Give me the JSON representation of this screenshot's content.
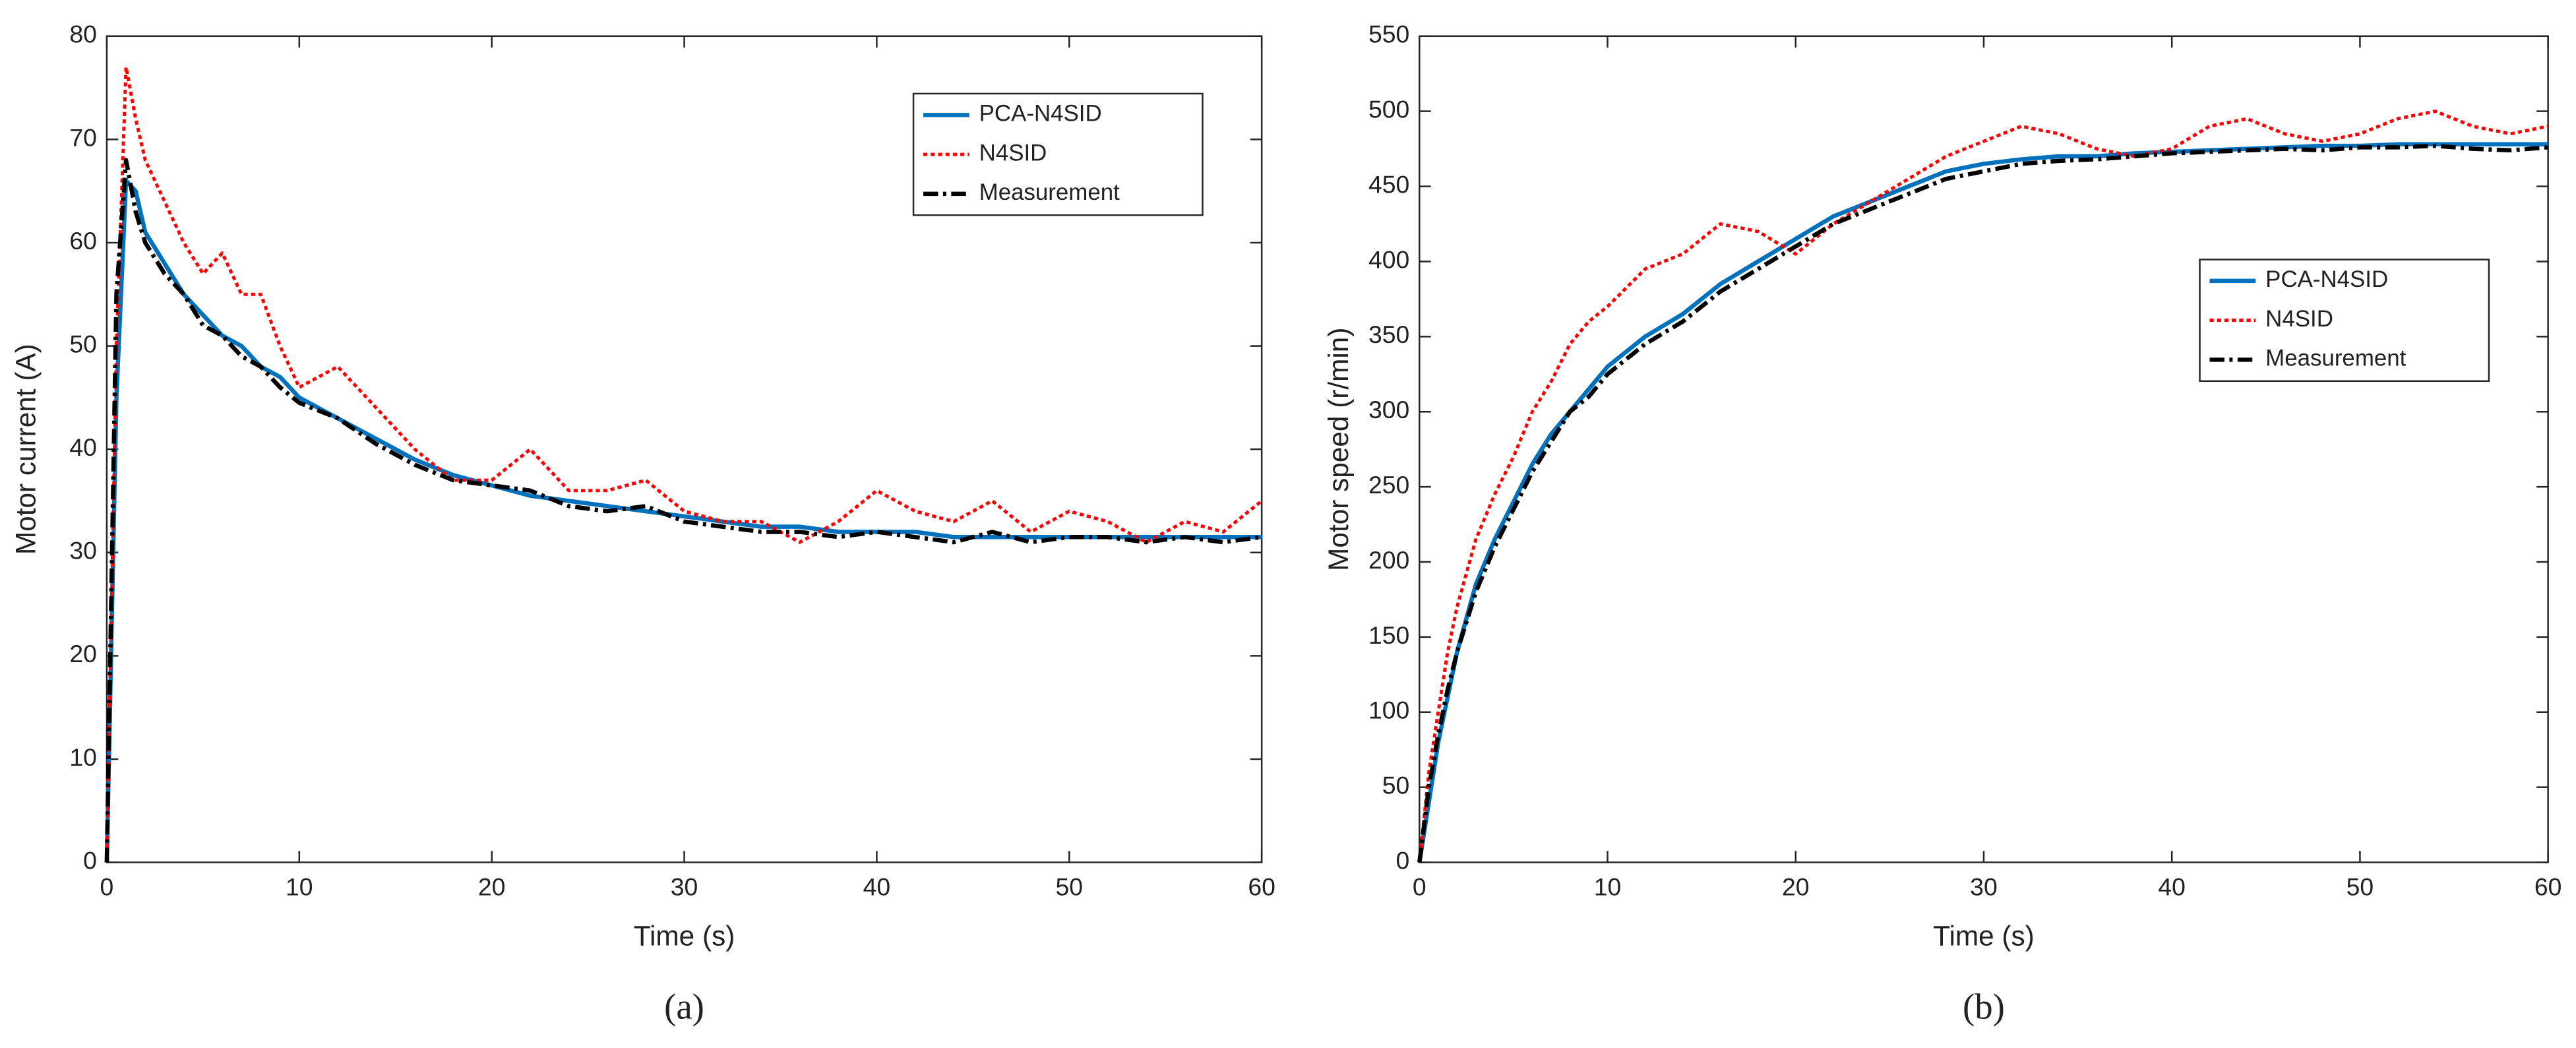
{
  "chart_data": [
    {
      "type": "line",
      "caption": "(a)",
      "xlabel": "Time (s)",
      "ylabel": "Motor current (A)",
      "x": [
        0,
        0.5,
        1,
        1.5,
        2,
        3,
        4,
        5,
        6,
        7,
        8,
        9,
        10,
        12,
        14,
        16,
        18,
        20,
        22,
        24,
        26,
        28,
        30,
        32,
        34,
        36,
        38,
        40,
        42,
        44,
        46,
        48,
        50,
        52,
        54,
        56,
        58,
        60
      ],
      "xlim": [
        0,
        60
      ],
      "xticks": [
        0,
        10,
        20,
        30,
        40,
        50,
        60
      ],
      "ylim": [
        0,
        80
      ],
      "yticks": [
        0,
        10,
        20,
        30,
        40,
        50,
        60,
        70,
        80
      ],
      "legend": "upper right",
      "series": [
        {
          "name": "PCA-N4SID",
          "color": "#0072bd",
          "dash": "solid",
          "values": [
            0,
            45,
            66,
            65,
            61,
            58,
            55,
            53,
            51,
            50,
            48,
            47,
            45,
            43,
            41,
            39,
            37.5,
            36.5,
            35.5,
            35,
            34.5,
            34,
            33.5,
            33,
            32.5,
            32.5,
            32,
            32,
            32,
            31.5,
            31.5,
            31.5,
            31.5,
            31.5,
            31.5,
            31.5,
            31.5,
            31.5
          ]
        },
        {
          "name": "N4SID",
          "color": "#ff0000",
          "dash": "dotted",
          "values": [
            0,
            50,
            77,
            72,
            68,
            64,
            60,
            57,
            59,
            55,
            55,
            50,
            46,
            48,
            44,
            40,
            37,
            37,
            40,
            36,
            36,
            37,
            34,
            33,
            33,
            31,
            33,
            36,
            34,
            33,
            35,
            32,
            34,
            33,
            31,
            33,
            32,
            35
          ]
        },
        {
          "name": "Measurement",
          "color": "#000000",
          "dash": "dashdot",
          "values": [
            0,
            55,
            68,
            63,
            60,
            57,
            55,
            52,
            51,
            49,
            48,
            46,
            44.5,
            43,
            40.5,
            38.5,
            37,
            36.5,
            36,
            34.5,
            34,
            34.5,
            33,
            32.5,
            32,
            32,
            31.5,
            32,
            31.5,
            31,
            32,
            31,
            31.5,
            31.5,
            31,
            31.5,
            31,
            31.5
          ]
        }
      ]
    },
    {
      "type": "line",
      "caption": "(b)",
      "xlabel": "Time (s)",
      "ylabel": "Motor speed (r/min)",
      "x": [
        0,
        0.5,
        1,
        1.5,
        2,
        3,
        4,
        5,
        6,
        7,
        8,
        9,
        10,
        12,
        14,
        16,
        18,
        20,
        22,
        24,
        26,
        28,
        30,
        32,
        34,
        36,
        38,
        40,
        42,
        44,
        46,
        48,
        50,
        52,
        54,
        56,
        58,
        60
      ],
      "xlim": [
        0,
        60
      ],
      "xticks": [
        0,
        10,
        20,
        30,
        40,
        50,
        60
      ],
      "ylim": [
        0,
        550
      ],
      "yticks": [
        0,
        50,
        100,
        150,
        200,
        250,
        300,
        350,
        400,
        450,
        500,
        550
      ],
      "legend": "center right",
      "series": [
        {
          "name": "PCA-N4SID",
          "color": "#0072bd",
          "dash": "solid",
          "values": [
            0,
            40,
            80,
            110,
            140,
            185,
            215,
            240,
            265,
            285,
            300,
            315,
            330,
            350,
            365,
            385,
            400,
            415,
            430,
            440,
            450,
            460,
            465,
            468,
            470,
            470,
            472,
            473,
            474,
            475,
            476,
            477,
            477,
            478,
            478,
            478,
            478,
            478
          ]
        },
        {
          "name": "N4SID",
          "color": "#ff0000",
          "dash": "dotted",
          "values": [
            0,
            60,
            100,
            140,
            170,
            215,
            245,
            270,
            300,
            320,
            345,
            360,
            370,
            395,
            405,
            425,
            420,
            405,
            425,
            440,
            455,
            470,
            480,
            490,
            485,
            475,
            470,
            475,
            490,
            495,
            485,
            480,
            485,
            495,
            500,
            490,
            485,
            490
          ]
        },
        {
          "name": "Measurement",
          "color": "#000000",
          "dash": "dashdot",
          "values": [
            0,
            50,
            85,
            115,
            140,
            180,
            210,
            235,
            260,
            280,
            300,
            310,
            325,
            345,
            360,
            380,
            395,
            410,
            425,
            435,
            445,
            455,
            460,
            465,
            467,
            468,
            470,
            472,
            473,
            474,
            475,
            474,
            476,
            476,
            477,
            475,
            474,
            476
          ]
        }
      ]
    }
  ]
}
